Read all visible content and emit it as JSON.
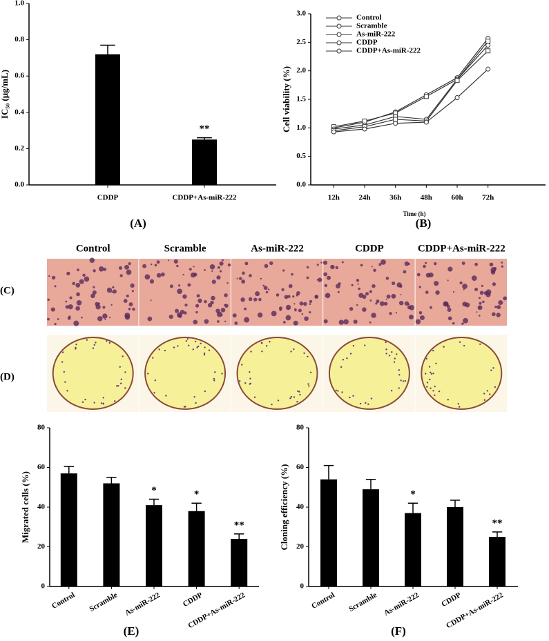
{
  "chart_data": [
    {
      "type": "bar",
      "panel_label": "(A)",
      "ylabel": "IC₅₀ (μg/mL)",
      "categories": [
        "CDDP",
        "CDDP+As-miR-222"
      ],
      "values": [
        0.72,
        0.25
      ],
      "errors": [
        0.05,
        0.01
      ],
      "color": "#000000",
      "annotations": [
        {
          "text": "**",
          "category": "CDDP+As-miR-222"
        }
      ],
      "ylim": [
        0,
        1
      ],
      "yticks": [
        {
          "value": 0,
          "label": "0.0"
        },
        0.2,
        0.4,
        0.6,
        0.8,
        {
          "value": 1,
          "label": "1.0"
        }
      ]
    },
    {
      "type": "line",
      "panel_label": "(B)",
      "xlabel": "Time (h)",
      "ylabel": "Cell viability (%)",
      "categories": [
        "12h",
        "24h",
        "36h",
        "48h",
        "60h",
        "72h"
      ],
      "series": [
        {
          "name": "Control",
          "color": "#333333",
          "values": [
            1.0,
            1.1,
            1.28,
            1.58,
            1.88,
            2.57
          ]
        },
        {
          "name": "Scramble",
          "color": "#333333",
          "values": [
            1.02,
            1.12,
            1.26,
            1.55,
            1.85,
            2.52
          ]
        },
        {
          "name": "As-miR-222",
          "color": "#333333",
          "values": [
            0.98,
            1.05,
            1.2,
            1.15,
            1.85,
            2.45
          ]
        },
        {
          "name": "CDDP",
          "color": "#333333",
          "values": [
            0.95,
            1.02,
            1.15,
            1.12,
            1.83,
            2.35
          ]
        },
        {
          "name": "CDDP+As-miR-222",
          "color": "#333333",
          "values": [
            0.93,
            0.98,
            1.08,
            1.1,
            1.53,
            2.03
          ]
        }
      ],
      "legend": "upper left",
      "ylim": [
        0,
        3
      ],
      "yticks": [
        {
          "value": 0,
          "label": "0.0"
        },
        0.5,
        {
          "value": 1,
          "label": "1.0"
        },
        1.5,
        {
          "value": 2,
          "label": "2.0"
        },
        2.5,
        {
          "value": 3,
          "label": "3.0"
        }
      ]
    },
    {
      "type": "bar",
      "panel_label": "(E)",
      "ylabel": "Migrated cells (%)",
      "categories": [
        "Control",
        "Scramble",
        "As-miR-222",
        "CDDP",
        "CDDP+As-miR-222"
      ],
      "values": [
        57,
        52,
        41,
        38,
        24
      ],
      "errors": [
        3.5,
        3,
        3,
        4,
        2.5
      ],
      "color": "#000000",
      "annotations": [
        {
          "text": "*",
          "category": "As-miR-222"
        },
        {
          "text": "*",
          "category": "CDDP"
        },
        {
          "text": "**",
          "category": "CDDP+As-miR-222"
        }
      ],
      "ylim": [
        0,
        80
      ],
      "yticks": [
        0,
        20,
        40,
        60,
        80
      ]
    },
    {
      "type": "bar",
      "panel_label": "(F)",
      "ylabel": "Cloning efficiency (%)",
      "categories": [
        "Control",
        "Scramble",
        "As-miR-222",
        "CDDP",
        "CDDP+As-miR-222"
      ],
      "values": [
        54,
        49,
        37,
        40,
        25
      ],
      "errors": [
        7,
        5,
        5,
        3.5,
        2.5
      ],
      "color": "#000000",
      "annotations": [
        {
          "text": "*",
          "category": "As-miR-222"
        },
        {
          "text": "**",
          "category": "CDDP+As-miR-222"
        }
      ],
      "ylim": [
        0,
        80
      ],
      "yticks": [
        0,
        20,
        40,
        60,
        80
      ]
    }
  ],
  "photos": {
    "columns": [
      "Control",
      "Scramble",
      "As-miR-222",
      "CDDP",
      "CDDP+As-miR-222"
    ],
    "row_labels": [
      "(C)",
      "(D)"
    ]
  }
}
